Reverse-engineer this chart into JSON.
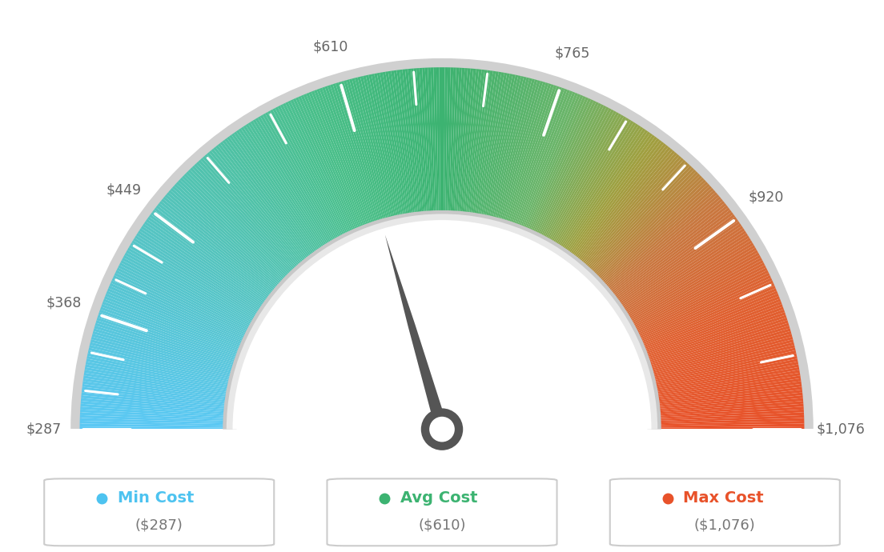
{
  "min_val": 287,
  "max_val": 1076,
  "avg_val": 610,
  "tick_labels": [
    "$287",
    "$368",
    "$449",
    "$610",
    "$765",
    "$920",
    "$1,076"
  ],
  "tick_values": [
    287,
    368,
    449,
    610,
    765,
    920,
    1076
  ],
  "min_cost_label": "Min Cost",
  "avg_cost_label": "Avg Cost",
  "max_cost_label": "Max Cost",
  "min_cost_val": "($287)",
  "avg_cost_val": "($610)",
  "max_cost_val": "($1,076)",
  "color_min": "#4dc3f0",
  "color_avg": "#3cb371",
  "color_max": "#e8522a",
  "needle_color": "#555555",
  "background_color": "#ffffff",
  "color_stops": [
    [
      0.0,
      "#5bc8f5"
    ],
    [
      0.2,
      "#55c4c0"
    ],
    [
      0.38,
      "#4abf8a"
    ],
    [
      0.5,
      "#3cb371"
    ],
    [
      0.62,
      "#6ab56a"
    ],
    [
      0.7,
      "#a0a040"
    ],
    [
      0.78,
      "#c87840"
    ],
    [
      0.88,
      "#e06030"
    ],
    [
      1.0,
      "#e8522a"
    ]
  ]
}
